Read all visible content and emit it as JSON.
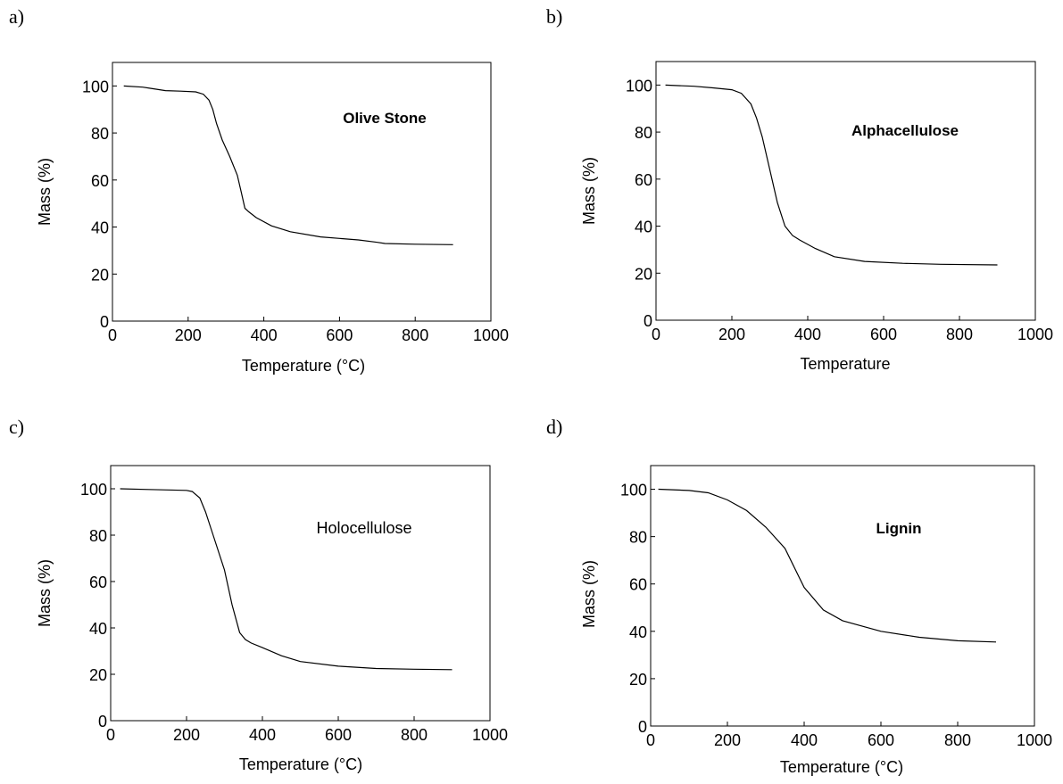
{
  "chart_data": [
    {
      "type": "line",
      "panel_label": "a)",
      "annotation": "Olive Stone",
      "annotation_bold": true,
      "xlabel": "Temperature (°C)",
      "ylabel": "Mass (%)",
      "xlim": [
        0,
        1000
      ],
      "ylim": [
        0,
        110
      ],
      "xticks": [
        0,
        200,
        400,
        600,
        800,
        1000
      ],
      "yticks": [
        0,
        20,
        40,
        60,
        80,
        100
      ],
      "grid": false,
      "series": [
        {
          "x": [
            30,
            80,
            100,
            140,
            180,
            220,
            240,
            255,
            265,
            275,
            290,
            310,
            330,
            340,
            350,
            360,
            380,
            420,
            470,
            550,
            650,
            700,
            720,
            800,
            900
          ],
          "y": [
            100,
            99.5,
            99,
            98,
            97.8,
            97.5,
            96.5,
            94,
            90,
            84,
            77,
            70,
            62,
            55,
            48,
            46.5,
            44,
            40.5,
            38,
            35.8,
            34.5,
            33.5,
            33,
            32.7,
            32.5
          ]
        }
      ]
    },
    {
      "type": "line",
      "panel_label": "b)",
      "annotation": "Alphacellulose",
      "annotation_bold": true,
      "xlabel": "Temperature",
      "ylabel": "Mass (%)",
      "xlim": [
        0,
        1000
      ],
      "ylim": [
        0,
        110
      ],
      "xticks": [
        0,
        200,
        400,
        600,
        800,
        1000
      ],
      "yticks": [
        0,
        20,
        40,
        60,
        80,
        100
      ],
      "grid": false,
      "series": [
        {
          "x": [
            25,
            100,
            150,
            200,
            225,
            250,
            265,
            280,
            300,
            320,
            340,
            360,
            380,
            420,
            470,
            550,
            650,
            750,
            900
          ],
          "y": [
            100,
            99.5,
            98.8,
            98,
            96.5,
            92,
            86,
            78,
            64,
            50,
            40,
            36,
            34,
            30.5,
            27,
            25,
            24.2,
            23.8,
            23.5
          ]
        }
      ]
    },
    {
      "type": "line",
      "panel_label": "c)",
      "annotation": "Holocellulose",
      "annotation_bold": false,
      "xlabel": "Temperature (°C)",
      "ylabel": "Mass (%)",
      "xlim": [
        0,
        1000
      ],
      "ylim": [
        0,
        110
      ],
      "xticks": [
        0,
        200,
        400,
        600,
        800,
        1000
      ],
      "yticks": [
        0,
        20,
        40,
        60,
        80,
        100
      ],
      "grid": false,
      "series": [
        {
          "x": [
            25,
            100,
            200,
            215,
            235,
            250,
            270,
            300,
            320,
            340,
            355,
            370,
            400,
            450,
            500,
            600,
            700,
            800,
            900
          ],
          "y": [
            100,
            99.7,
            99.3,
            98.8,
            96,
            90,
            80,
            65,
            50,
            38,
            35,
            33.5,
            31.5,
            28,
            25.5,
            23.5,
            22.5,
            22.2,
            22
          ]
        }
      ]
    },
    {
      "type": "line",
      "panel_label": "d)",
      "annotation": "Lignin",
      "annotation_bold": true,
      "xlabel": "Temperature (°C)",
      "ylabel": "Mass (%)",
      "xlim": [
        0,
        1000
      ],
      "ylim": [
        0,
        110
      ],
      "xticks": [
        0,
        200,
        400,
        600,
        800,
        1000
      ],
      "yticks": [
        0,
        20,
        40,
        60,
        80,
        100
      ],
      "grid": false,
      "series": [
        {
          "x": [
            20,
            100,
            150,
            200,
            250,
            300,
            350,
            400,
            450,
            500,
            600,
            700,
            800,
            900
          ],
          "y": [
            100,
            99.5,
            98.5,
            95.5,
            91,
            84,
            75,
            58.5,
            49,
            44.5,
            40,
            37.5,
            36,
            35.5
          ]
        }
      ]
    }
  ]
}
